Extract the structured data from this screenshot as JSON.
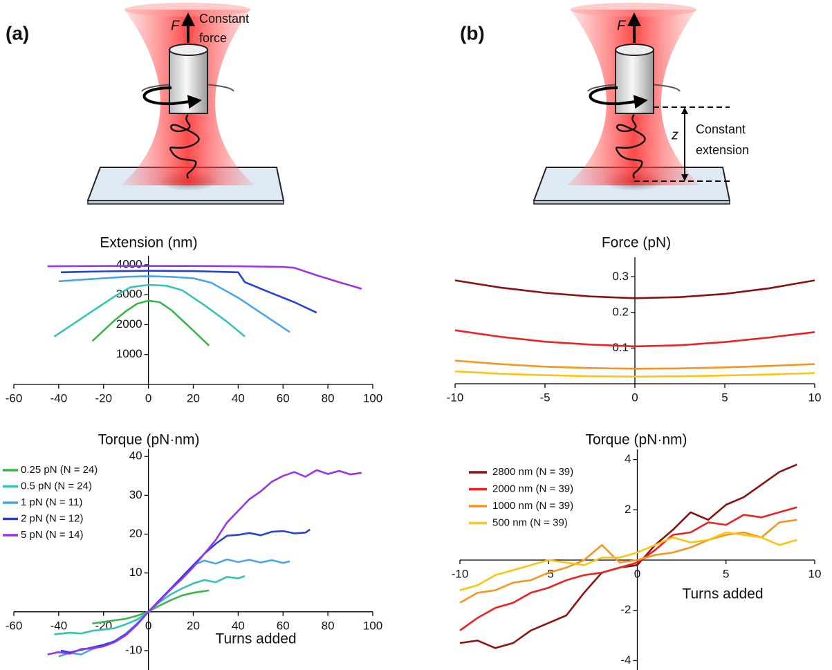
{
  "panels": [
    {
      "label": "(a)",
      "force_symbol": "F",
      "note": [
        "Constant",
        "force"
      ]
    },
    {
      "label": "(b)",
      "force_symbol": "F",
      "extension_symbol": "z",
      "note": [
        "Constant",
        "extension"
      ]
    }
  ],
  "chart_data": [
    {
      "type": "line",
      "title": "Extension (nm)",
      "xlim": [
        -60,
        100
      ],
      "xticks": [
        -60,
        -40,
        -20,
        0,
        20,
        40,
        60,
        80,
        100
      ],
      "ylim": [
        0,
        4300
      ],
      "yticks": [
        1000,
        2000,
        3000,
        4000
      ],
      "series": [
        {
          "color": "#3ab54a",
          "x": [
            -25,
            -20,
            -15,
            -10,
            -5,
            0,
            5,
            10,
            15,
            20,
            27
          ],
          "values": [
            1450,
            1800,
            2150,
            2450,
            2700,
            2800,
            2750,
            2500,
            2150,
            1800,
            1300
          ]
        },
        {
          "color": "#36c2b4",
          "x": [
            -42,
            -35,
            -25,
            -15,
            -8,
            0,
            8,
            15,
            25,
            35,
            43
          ],
          "values": [
            1600,
            1950,
            2450,
            2950,
            3250,
            3330,
            3300,
            3150,
            2650,
            2100,
            1600
          ]
        },
        {
          "color": "#4aa3ef",
          "x": [
            -40,
            -30,
            -20,
            -10,
            0,
            10,
            20,
            28,
            40,
            50,
            63
          ],
          "values": [
            3450,
            3500,
            3550,
            3600,
            3620,
            3600,
            3550,
            3400,
            2900,
            2400,
            1750
          ]
        },
        {
          "color": "#2840d8",
          "x": [
            -39,
            -20,
            0,
            20,
            40,
            43,
            55,
            65,
            75
          ],
          "values": [
            3750,
            3780,
            3800,
            3790,
            3750,
            3420,
            3050,
            2750,
            2400
          ]
        },
        {
          "color": "#9933ee",
          "x": [
            -45,
            -20,
            0,
            20,
            40,
            60,
            65,
            75,
            85,
            95
          ],
          "values": [
            3950,
            3960,
            3960,
            3960,
            3950,
            3930,
            3900,
            3650,
            3420,
            3200
          ]
        }
      ]
    },
    {
      "type": "line",
      "title": "Torque (pN·nm)",
      "xlabel": "Turns added",
      "legend": "upper left",
      "xlim": [
        -60,
        100
      ],
      "xticks": [
        -60,
        -40,
        -20,
        0,
        20,
        40,
        60,
        80,
        100
      ],
      "ylim": [
        -15,
        42
      ],
      "yticks": [
        -10,
        10,
        20,
        30,
        40
      ],
      "series": [
        {
          "name": "0.25 pN (N = 24)",
          "color": "#3ab54a",
          "x": [
            -25,
            -20,
            -15,
            -10,
            -5,
            0,
            5,
            10,
            15,
            20,
            27
          ],
          "values": [
            -3,
            -2.6,
            -2.2,
            -1.8,
            -1,
            0,
            1.6,
            3,
            4.2,
            4.9,
            5.5
          ]
        },
        {
          "name": "0.5 pN (N = 24)",
          "color": "#36c2b4",
          "x": [
            -42,
            -35,
            -30,
            -25,
            -20,
            -15,
            -10,
            -5,
            0,
            5,
            10,
            15,
            20,
            25,
            30,
            35,
            40,
            43
          ],
          "values": [
            -5.8,
            -5.4,
            -5.6,
            -4.9,
            -4.6,
            -4.2,
            -3.2,
            -2,
            0,
            2.5,
            4.5,
            6,
            7.3,
            8.2,
            7.6,
            9,
            8.6,
            9.2
          ]
        },
        {
          "name": "1 pN (N = 11)",
          "color": "#4aa3ef",
          "x": [
            -40,
            -35,
            -30,
            -25,
            -20,
            -15,
            -10,
            -5,
            0,
            5,
            10,
            15,
            20,
            25,
            30,
            35,
            40,
            45,
            50,
            55,
            60,
            63
          ],
          "values": [
            -11.5,
            -10.6,
            -11,
            -9.6,
            -8.7,
            -7.5,
            -5.6,
            -3,
            0,
            3,
            6,
            9,
            12,
            13.2,
            12.4,
            13.5,
            12.8,
            13.4,
            12.7,
            13.3,
            12.6,
            13
          ]
        },
        {
          "name": "2 pN (N = 12)",
          "color": "#2840d8",
          "x": [
            -39,
            -35,
            -30,
            -25,
            -20,
            -15,
            -10,
            -5,
            0,
            5,
            10,
            15,
            20,
            25,
            30,
            35,
            40,
            45,
            50,
            55,
            60,
            65,
            70,
            72
          ],
          "values": [
            -10,
            -10.5,
            -9.8,
            -9.2,
            -8.5,
            -7.6,
            -5.8,
            -3.2,
            0,
            3,
            6,
            9,
            12,
            15,
            17.5,
            19.6,
            19.8,
            20.3,
            19.7,
            20.6,
            20.8,
            20.2,
            20.4,
            21.2
          ]
        },
        {
          "name": "5 pN (N = 14)",
          "color": "#9933ee",
          "x": [
            -45,
            -40,
            -35,
            -30,
            -25,
            -20,
            -15,
            -10,
            -5,
            0,
            5,
            10,
            15,
            20,
            25,
            30,
            35,
            40,
            45,
            50,
            55,
            60,
            65,
            70,
            75,
            80,
            85,
            90,
            95
          ],
          "values": [
            -11,
            -10.4,
            -10.8,
            -9.6,
            -9.4,
            -8.9,
            -7.8,
            -6,
            -3.3,
            0,
            2.8,
            5.8,
            8.5,
            11.5,
            15,
            18.5,
            23,
            26,
            29,
            31,
            33.5,
            35,
            36,
            34.8,
            36.5,
            35.5,
            36.3,
            35.4,
            35.8
          ]
        }
      ]
    },
    {
      "type": "line",
      "title": "Force (pN)",
      "xlim": [
        -10,
        10
      ],
      "xticks": [
        -10,
        -5,
        0,
        5,
        10
      ],
      "ylim": [
        0,
        0.355
      ],
      "yticks": [
        0.1,
        0.2,
        0.3
      ],
      "series": [
        {
          "color": "#8b1010",
          "x": [
            -10,
            -7.5,
            -5,
            -2.5,
            0,
            2.5,
            5,
            7.5,
            10
          ],
          "values": [
            0.29,
            0.27,
            0.255,
            0.245,
            0.24,
            0.243,
            0.252,
            0.268,
            0.29
          ]
        },
        {
          "color": "#ee2020",
          "x": [
            -10,
            -7.5,
            -5,
            -2.5,
            0,
            2.5,
            5,
            7.5,
            10
          ],
          "values": [
            0.15,
            0.132,
            0.118,
            0.11,
            0.105,
            0.108,
            0.117,
            0.13,
            0.145
          ]
        },
        {
          "color": "#f7941d",
          "x": [
            -10,
            -7.5,
            -5,
            -2.5,
            0,
            2.5,
            5,
            7.5,
            10
          ],
          "values": [
            0.065,
            0.055,
            0.048,
            0.044,
            0.042,
            0.043,
            0.046,
            0.05,
            0.055
          ]
        },
        {
          "color": "#ffc20e",
          "x": [
            -10,
            -7.5,
            -5,
            -2.5,
            0,
            2.5,
            5,
            7.5,
            10
          ],
          "values": [
            0.035,
            0.028,
            0.024,
            0.021,
            0.02,
            0.021,
            0.023,
            0.026,
            0.03
          ]
        }
      ]
    },
    {
      "type": "line",
      "title": "Torque (pN·nm)",
      "xlabel": "Turns added",
      "legend": "upper left",
      "xlim": [
        -10,
        10
      ],
      "xticks": [
        -10,
        -5,
        0,
        5,
        10
      ],
      "ylim": [
        -4.4,
        4.4
      ],
      "yticks": [
        -4,
        -2,
        2,
        4
      ],
      "series": [
        {
          "name": "2800 nm (N = 39)",
          "color": "#8b1010",
          "x": [
            -10,
            -9,
            -8,
            -7,
            -6,
            -5,
            -4,
            -3,
            -2,
            -1,
            0,
            1,
            2,
            3,
            4,
            5,
            6,
            7,
            8,
            9
          ],
          "values": [
            -3.3,
            -3.2,
            -3.5,
            -3.3,
            -2.8,
            -2.5,
            -2.2,
            -1.3,
            -0.5,
            -0.3,
            -0.2,
            0.6,
            1.2,
            1.9,
            1.6,
            2.2,
            2.5,
            3,
            3.5,
            3.8
          ]
        },
        {
          "name": "2000 nm (N = 39)",
          "color": "#ee2020",
          "x": [
            -10,
            -9,
            -8,
            -7,
            -6,
            -5,
            -4,
            -3,
            -2,
            -1,
            0,
            1,
            2,
            3,
            4,
            5,
            6,
            7,
            8,
            9
          ],
          "values": [
            -2.8,
            -2.3,
            -1.9,
            -1.7,
            -1.3,
            -1.1,
            -0.8,
            -0.6,
            -0.5,
            -0.3,
            -0.1,
            0.4,
            1,
            1.1,
            1.5,
            1.4,
            1.8,
            1.7,
            1.9,
            2.1
          ]
        },
        {
          "name": "1000 nm (N = 39)",
          "color": "#f7941d",
          "x": [
            -10,
            -9,
            -8,
            -7,
            -6,
            -5,
            -4,
            -3,
            -2,
            -1,
            0,
            1,
            2,
            3,
            4,
            5,
            6,
            7,
            8,
            9
          ],
          "values": [
            -1.7,
            -1.3,
            -1.2,
            -0.9,
            -0.8,
            -0.5,
            -0.3,
            0,
            0.6,
            -0.1,
            0,
            0.2,
            0.3,
            0.5,
            0.8,
            1,
            1.1,
            0.9,
            1.5,
            1.6
          ]
        },
        {
          "name": "500 nm (N = 39)",
          "color": "#ffc20e",
          "x": [
            -10,
            -9,
            -8,
            -7,
            -6,
            -5,
            -4,
            -3,
            -2,
            -1,
            0,
            1,
            2,
            3,
            4,
            5,
            6,
            7,
            8,
            9
          ],
          "values": [
            -1.2,
            -1,
            -0.6,
            -0.4,
            -0.2,
            0,
            -0.1,
            -0.2,
            0.1,
            0.1,
            0.3,
            0.6,
            0.9,
            0.7,
            0.8,
            1.1,
            1,
            0.9,
            0.6,
            0.8
          ]
        }
      ]
    }
  ]
}
